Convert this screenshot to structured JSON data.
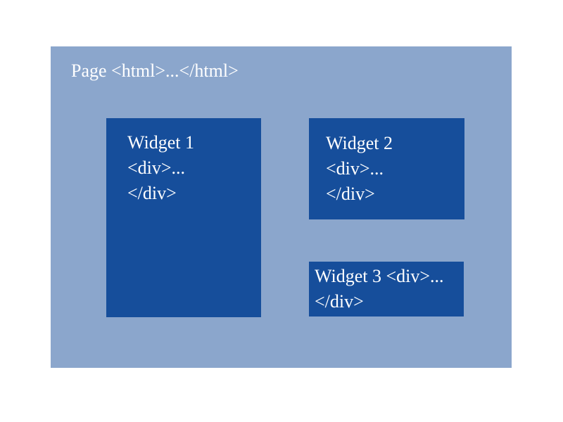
{
  "colors": {
    "page_background": "#8ba6cc",
    "widget_background": "#164e9b",
    "text": "#ffffff"
  },
  "page": {
    "label": "Page <html>...</html>"
  },
  "widgets": [
    {
      "title": "Widget 1",
      "open_tag": "<div>...",
      "close_tag": "</div>"
    },
    {
      "title": "Widget 2",
      "open_tag": "<div>...",
      "close_tag": "</div>"
    },
    {
      "first_line": "Widget 3 <div>...",
      "close_tag": "</div>"
    }
  ]
}
